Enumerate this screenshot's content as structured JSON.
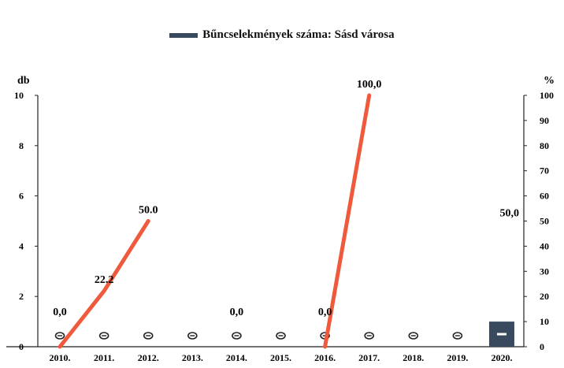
{
  "chart_data": {
    "type": "bar+line",
    "title": "",
    "legend": {
      "label": "Bűncselekmények száma: Sásd városa",
      "placement": "top-center"
    },
    "x": [
      "2010.",
      "2011.",
      "2012.",
      "2013.",
      "2014.",
      "2015.",
      "2016.",
      "2017.",
      "2018.",
      "2019.",
      "2020."
    ],
    "left_axis": {
      "label": "db",
      "ylim": [
        0,
        10
      ],
      "ticks": [
        "0",
        "2",
        "4",
        "6",
        "8",
        "10"
      ]
    },
    "right_axis": {
      "label": "%",
      "ylim": [
        0,
        100
      ],
      "ticks": [
        "0",
        "10",
        "20",
        "30",
        "40",
        "50",
        "60",
        "70",
        "80",
        "90",
        "100"
      ]
    },
    "series": [
      {
        "name": "Bűncselekmények száma: Sásd városa",
        "kind": "bar",
        "axis": "left",
        "color": "#3a4a5e",
        "values": [
          0,
          0,
          0,
          0,
          0,
          0,
          0,
          0,
          0,
          0,
          1
        ]
      },
      {
        "kind": "line",
        "axis": "right",
        "color": "#ef5a3c",
        "segments": [
          {
            "x": [
              "2010.",
              "2011.",
              "2012."
            ],
            "values": [
              0,
              22.2,
              50.0
            ]
          },
          {
            "x": [
              "2016.",
              "2017."
            ],
            "values": [
              0,
              100.0
            ]
          }
        ]
      }
    ],
    "data_labels": [
      {
        "x": "2010.",
        "axis": "right",
        "value": 0,
        "text": "0,0"
      },
      {
        "x": "2011.",
        "axis": "right",
        "value": 22.2,
        "text": "22.2"
      },
      {
        "x": "2012.",
        "axis": "right",
        "value": 50.0,
        "text": "50.0"
      },
      {
        "x": "2014.",
        "axis": "right",
        "value": 0,
        "text": "0,0"
      },
      {
        "x": "2016.",
        "axis": "right",
        "value": 0,
        "text": "0,0"
      },
      {
        "x": "2017.",
        "axis": "right",
        "value": 100.0,
        "text": "100,0"
      },
      {
        "x": "2020.",
        "axis": "right",
        "value": 50.0,
        "text": "50,0"
      }
    ],
    "grid": false
  }
}
